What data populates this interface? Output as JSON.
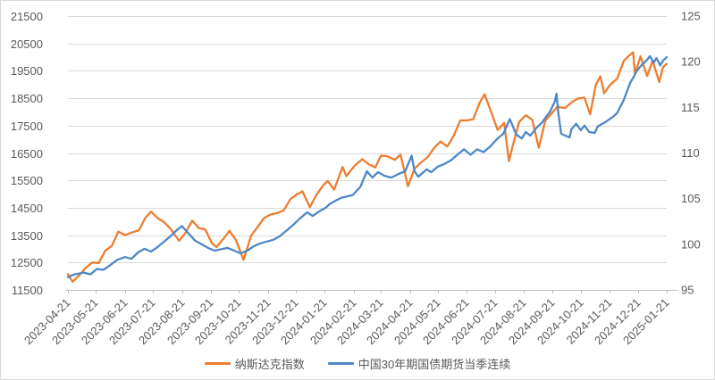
{
  "chart_data": {
    "type": "line",
    "title": "",
    "x_axis": {
      "start_date": "2023-04-21",
      "end_date": "2025-01-21",
      "label_rotation_deg": 45,
      "tick_labels": [
        "2023-04-21",
        "2023-05-21",
        "2023-06-21",
        "2023-07-21",
        "2023-08-21",
        "2023-09-21",
        "2023-10-21",
        "2023-11-21",
        "2023-12-21",
        "2024-01-21",
        "2024-02-21",
        "2024-03-21",
        "2024-04-21",
        "2024-05-21",
        "2024-06-21",
        "2024-07-21",
        "2024-08-21",
        "2024-09-21",
        "2024-10-21",
        "2024-11-21",
        "2024-12-21",
        "2025-01-21"
      ]
    },
    "y_axis_left": {
      "min": 11500,
      "max": 21500,
      "step": 1000,
      "tick_labels": [
        "11500",
        "12500",
        "13500",
        "14500",
        "15500",
        "16500",
        "17500",
        "18500",
        "19500",
        "20500",
        "21500"
      ]
    },
    "y_axis_right": {
      "min": 95,
      "max": 125,
      "step": 5,
      "tick_labels": [
        "95",
        "100",
        "105",
        "110",
        "115",
        "120",
        "125"
      ]
    },
    "grid": true,
    "legend_position": "bottom",
    "colors": {
      "gridline": "#D9D9D9",
      "axis_line": "#BFBFBF",
      "label_text": "#595959"
    },
    "series": [
      {
        "name": "纳斯达克指数",
        "axis": "left",
        "color": "#ED7D31",
        "points": [
          [
            "2023-04-21",
            12072
          ],
          [
            "2023-04-26",
            11799
          ],
          [
            "2023-05-03",
            12025
          ],
          [
            "2023-05-10",
            12306
          ],
          [
            "2023-05-17",
            12500
          ],
          [
            "2023-05-24",
            12484
          ],
          [
            "2023-05-31",
            12935
          ],
          [
            "2023-06-07",
            13105
          ],
          [
            "2023-06-14",
            13626
          ],
          [
            "2023-06-21",
            13502
          ],
          [
            "2023-06-28",
            13592
          ],
          [
            "2023-07-06",
            13679
          ],
          [
            "2023-07-13",
            14138
          ],
          [
            "2023-07-19",
            14358
          ],
          [
            "2023-07-26",
            14127
          ],
          [
            "2023-08-02",
            13973
          ],
          [
            "2023-08-09",
            13722
          ],
          [
            "2023-08-18",
            13291
          ],
          [
            "2023-08-25",
            13591
          ],
          [
            "2023-09-01",
            14032
          ],
          [
            "2023-09-08",
            13762
          ],
          [
            "2023-09-15",
            13708
          ],
          [
            "2023-09-22",
            13212
          ],
          [
            "2023-09-27",
            13064
          ],
          [
            "2023-10-06",
            13431
          ],
          [
            "2023-10-11",
            13660
          ],
          [
            "2023-10-18",
            13314
          ],
          [
            "2023-10-26",
            12595
          ],
          [
            "2023-11-03",
            13478
          ],
          [
            "2023-11-10",
            13798
          ],
          [
            "2023-11-17",
            14125
          ],
          [
            "2023-11-24",
            14251
          ],
          [
            "2023-12-01",
            14305
          ],
          [
            "2023-12-08",
            14404
          ],
          [
            "2023-12-15",
            14814
          ],
          [
            "2023-12-22",
            14993
          ],
          [
            "2023-12-28",
            15099
          ],
          [
            "2024-01-05",
            14524
          ],
          [
            "2024-01-12",
            14973
          ],
          [
            "2024-01-19",
            15310
          ],
          [
            "2024-01-24",
            15482
          ],
          [
            "2024-01-31",
            15164
          ],
          [
            "2024-02-09",
            15991
          ],
          [
            "2024-02-13",
            15656
          ],
          [
            "2024-02-22",
            16042
          ],
          [
            "2024-03-01",
            16275
          ],
          [
            "2024-03-08",
            16085
          ],
          [
            "2024-03-15",
            15973
          ],
          [
            "2024-03-21",
            16401
          ],
          [
            "2024-03-28",
            16379
          ],
          [
            "2024-04-05",
            16248
          ],
          [
            "2024-04-11",
            16442
          ],
          [
            "2024-04-19",
            15282
          ],
          [
            "2024-04-26",
            15928
          ],
          [
            "2024-05-03",
            16156
          ],
          [
            "2024-05-10",
            16341
          ],
          [
            "2024-05-17",
            16686
          ],
          [
            "2024-05-24",
            16921
          ],
          [
            "2024-05-31",
            16735
          ],
          [
            "2024-06-07",
            17133
          ],
          [
            "2024-06-14",
            17689
          ],
          [
            "2024-06-21",
            17689
          ],
          [
            "2024-06-28",
            17733
          ],
          [
            "2024-07-05",
            18353
          ],
          [
            "2024-07-10",
            18647
          ],
          [
            "2024-07-17",
            17997
          ],
          [
            "2024-07-24",
            17342
          ],
          [
            "2024-07-31",
            17599
          ],
          [
            "2024-08-05",
            16200
          ],
          [
            "2024-08-09",
            16745
          ],
          [
            "2024-08-16",
            17632
          ],
          [
            "2024-08-23",
            17877
          ],
          [
            "2024-08-30",
            17714
          ],
          [
            "2024-09-06",
            16691
          ],
          [
            "2024-09-13",
            17684
          ],
          [
            "2024-09-20",
            17948
          ],
          [
            "2024-09-26",
            18190
          ],
          [
            "2024-10-04",
            18138
          ],
          [
            "2024-10-11",
            18343
          ],
          [
            "2024-10-18",
            18490
          ],
          [
            "2024-10-25",
            18519
          ],
          [
            "2024-10-31",
            17911
          ],
          [
            "2024-11-06",
            18983
          ],
          [
            "2024-11-11",
            19299
          ],
          [
            "2024-11-15",
            18680
          ],
          [
            "2024-11-21",
            18972
          ],
          [
            "2024-11-29",
            19218
          ],
          [
            "2024-12-06",
            19860
          ],
          [
            "2024-12-11",
            20034
          ],
          [
            "2024-12-16",
            20174
          ],
          [
            "2024-12-18",
            19393
          ],
          [
            "2024-12-24",
            20031
          ],
          [
            "2024-12-31",
            19311
          ],
          [
            "2025-01-06",
            19864
          ],
          [
            "2025-01-13",
            19088
          ],
          [
            "2025-01-17",
            19630
          ],
          [
            "2025-01-21",
            19756
          ]
        ]
      },
      {
        "name": "中国30年期国债期货当季连续",
        "axis": "right",
        "color": "#4E87C6",
        "points": [
          [
            "2023-04-21",
            96.4
          ],
          [
            "2023-04-28",
            96.7
          ],
          [
            "2023-05-08",
            96.9
          ],
          [
            "2023-05-15",
            96.7
          ],
          [
            "2023-05-22",
            97.3
          ],
          [
            "2023-05-29",
            97.2
          ],
          [
            "2023-06-05",
            97.7
          ],
          [
            "2023-06-13",
            98.3
          ],
          [
            "2023-06-21",
            98.6
          ],
          [
            "2023-06-28",
            98.4
          ],
          [
            "2023-07-05",
            99.1
          ],
          [
            "2023-07-12",
            99.5
          ],
          [
            "2023-07-19",
            99.2
          ],
          [
            "2023-07-26",
            99.7
          ],
          [
            "2023-08-02",
            100.3
          ],
          [
            "2023-08-09",
            100.9
          ],
          [
            "2023-08-15",
            101.5
          ],
          [
            "2023-08-21",
            102.0
          ],
          [
            "2023-08-28",
            101.2
          ],
          [
            "2023-09-04",
            100.4
          ],
          [
            "2023-09-11",
            100.0
          ],
          [
            "2023-09-18",
            99.6
          ],
          [
            "2023-09-25",
            99.3
          ],
          [
            "2023-10-09",
            99.6
          ],
          [
            "2023-10-16",
            99.3
          ],
          [
            "2023-10-23",
            99.0
          ],
          [
            "2023-10-30",
            99.3
          ],
          [
            "2023-11-06",
            99.8
          ],
          [
            "2023-11-13",
            100.1
          ],
          [
            "2023-11-20",
            100.3
          ],
          [
            "2023-11-27",
            100.5
          ],
          [
            "2023-12-04",
            100.9
          ],
          [
            "2023-12-11",
            101.5
          ],
          [
            "2023-12-18",
            102.1
          ],
          [
            "2023-12-25",
            102.8
          ],
          [
            "2024-01-02",
            103.5
          ],
          [
            "2024-01-08",
            103.1
          ],
          [
            "2024-01-15",
            103.6
          ],
          [
            "2024-01-22",
            104.0
          ],
          [
            "2024-01-26",
            104.4
          ],
          [
            "2024-02-02",
            104.8
          ],
          [
            "2024-02-08",
            105.1
          ],
          [
            "2024-02-20",
            105.4
          ],
          [
            "2024-02-28",
            106.3
          ],
          [
            "2024-03-06",
            108.0
          ],
          [
            "2024-03-12",
            107.3
          ],
          [
            "2024-03-18",
            107.9
          ],
          [
            "2024-03-25",
            107.5
          ],
          [
            "2024-04-01",
            107.3
          ],
          [
            "2024-04-09",
            107.7
          ],
          [
            "2024-04-16",
            108.0
          ],
          [
            "2024-04-23",
            109.7
          ],
          [
            "2024-04-26",
            108.0
          ],
          [
            "2024-04-30",
            107.4
          ],
          [
            "2024-05-09",
            108.2
          ],
          [
            "2024-05-14",
            107.9
          ],
          [
            "2024-05-21",
            108.5
          ],
          [
            "2024-05-28",
            108.8
          ],
          [
            "2024-06-04",
            109.2
          ],
          [
            "2024-06-12",
            109.9
          ],
          [
            "2024-06-18",
            110.4
          ],
          [
            "2024-06-25",
            109.8
          ],
          [
            "2024-07-02",
            110.4
          ],
          [
            "2024-07-09",
            110.1
          ],
          [
            "2024-07-16",
            110.7
          ],
          [
            "2024-07-23",
            111.5
          ],
          [
            "2024-07-30",
            112.1
          ],
          [
            "2024-08-06",
            113.7
          ],
          [
            "2024-08-09",
            113.0
          ],
          [
            "2024-08-13",
            112.0
          ],
          [
            "2024-08-19",
            111.6
          ],
          [
            "2024-08-23",
            112.3
          ],
          [
            "2024-08-28",
            111.9
          ],
          [
            "2024-09-03",
            112.7
          ],
          [
            "2024-09-10",
            113.4
          ],
          [
            "2024-09-14",
            114.0
          ],
          [
            "2024-09-18",
            114.5
          ],
          [
            "2024-09-23",
            115.6
          ],
          [
            "2024-09-25",
            116.5
          ],
          [
            "2024-09-27",
            114.3
          ],
          [
            "2024-09-30",
            112.1
          ],
          [
            "2024-10-09",
            111.7
          ],
          [
            "2024-10-11",
            112.6
          ],
          [
            "2024-10-16",
            113.2
          ],
          [
            "2024-10-21",
            112.5
          ],
          [
            "2024-10-25",
            113.0
          ],
          [
            "2024-10-30",
            112.3
          ],
          [
            "2024-11-05",
            112.2
          ],
          [
            "2024-11-08",
            112.9
          ],
          [
            "2024-11-13",
            113.2
          ],
          [
            "2024-11-18",
            113.5
          ],
          [
            "2024-11-25",
            114.0
          ],
          [
            "2024-11-29",
            114.4
          ],
          [
            "2024-12-03",
            115.2
          ],
          [
            "2024-12-06",
            115.8
          ],
          [
            "2024-12-10",
            116.9
          ],
          [
            "2024-12-13",
            117.7
          ],
          [
            "2024-12-17",
            118.4
          ],
          [
            "2024-12-20",
            119.0
          ],
          [
            "2024-12-24",
            119.5
          ],
          [
            "2024-12-27",
            119.8
          ],
          [
            "2024-12-31",
            120.2
          ],
          [
            "2025-01-03",
            120.6
          ],
          [
            "2025-01-07",
            119.9
          ],
          [
            "2025-01-10",
            120.4
          ],
          [
            "2025-01-14",
            119.6
          ],
          [
            "2025-01-17",
            120.1
          ],
          [
            "2025-01-21",
            120.5
          ]
        ]
      }
    ]
  }
}
